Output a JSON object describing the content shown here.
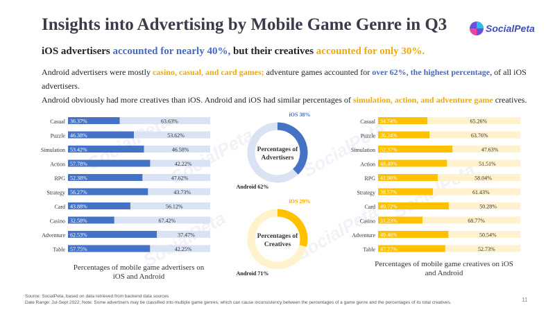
{
  "title": "Insights into Advertising by Mobile Game Genre in Q3",
  "logo": {
    "text": "SocialPeta"
  },
  "subtitle": {
    "part1": "iOS advertisers ",
    "part2": "accounted for nearly 40%,",
    "part3": " but their creatives ",
    "part4": "accounted for only 30%."
  },
  "para1": {
    "a": "Android advertisers were mostly ",
    "b": "casino, casual, and card games;",
    "c": " adventure games accounted for ",
    "d": "over 62%, the highest percentage,",
    "e": " of all iOS advertisers."
  },
  "para2": {
    "a": "Android obviously had more creatives than iOS. Android and iOS had similar percentages of ",
    "b": "simulation, action, and adventure game",
    "c": " creatives."
  },
  "watermark": "SocialPeta",
  "colors": {
    "ios_blue": "#4472c4",
    "android_blue_light": "#dae3f3",
    "ios_orange": "#ffc000",
    "android_orange_light": "#fff2cc"
  },
  "chart_data": [
    {
      "type": "bar",
      "orientation": "horizontal-stacked-100",
      "caption": "Percentages of mobile game advertisers on iOS and Android",
      "categories": [
        "Casual",
        "Puzzle",
        "Simulation",
        "Action",
        "RPG",
        "Strategy",
        "Card",
        "Casino",
        "Adventure",
        "Table"
      ],
      "series": [
        {
          "name": "iOS",
          "values": [
            36.37,
            46.38,
            53.42,
            57.78,
            52.38,
            56.27,
            43.88,
            32.58,
            62.53,
            57.75
          ],
          "labels": [
            "36.37%",
            "46.38%",
            "53.42%",
            "57.78%",
            "52.38%",
            "56.27%",
            "43.88%",
            "32.58%",
            "62.53%",
            "57.75%"
          ]
        },
        {
          "name": "Android",
          "values": [
            63.63,
            53.62,
            46.58,
            42.22,
            47.62,
            43.73,
            56.12,
            67.42,
            37.47,
            42.25
          ],
          "labels": [
            "63.63%",
            "53.62%",
            "46.58%",
            "42.22%",
            "47.62%",
            "43.73%",
            "56.12%",
            "67.42%",
            "37.47%",
            "42.25%"
          ]
        }
      ]
    },
    {
      "type": "pie",
      "center_label": [
        "Percentages of",
        "Advertisers"
      ],
      "slices": [
        {
          "name": "iOS",
          "value": 38,
          "label": "iOS 38%"
        },
        {
          "name": "Android",
          "value": 62,
          "label": "Android 62%"
        }
      ]
    },
    {
      "type": "pie",
      "center_label": [
        "Percentages of",
        "Creatives"
      ],
      "slices": [
        {
          "name": "iOS",
          "value": 29,
          "label": "iOS 29%"
        },
        {
          "name": "Android",
          "value": 71,
          "label": "Android 71%"
        }
      ]
    },
    {
      "type": "bar",
      "orientation": "horizontal-stacked-100",
      "caption": "Percentages of mobile game creatives on iOS and Android",
      "categories": [
        "Casual",
        "Puzzle",
        "Simulation",
        "Action",
        "RPG",
        "Strategy",
        "Card",
        "Casino",
        "Adventure",
        "Table"
      ],
      "series": [
        {
          "name": "iOS",
          "values": [
            34.74,
            36.24,
            52.37,
            48.49,
            41.96,
            38.57,
            49.72,
            31.23,
            49.46,
            47.27
          ],
          "labels": [
            "34.74%",
            "36.24%",
            "52.37%",
            "48.49%",
            "41.96%",
            "38.57%",
            "49.72%",
            "31.23%",
            "49.46%",
            "47.27%"
          ]
        },
        {
          "name": "Android",
          "values": [
            65.26,
            63.76,
            47.63,
            51.51,
            58.04,
            61.43,
            50.28,
            68.77,
            50.54,
            52.73
          ],
          "labels": [
            "65.26%",
            "63.76%",
            "47.63%",
            "51.51%",
            "58.04%",
            "61.43%",
            "50.28%",
            "68.77%",
            "50.54%",
            "52.73%"
          ]
        }
      ]
    }
  ],
  "footer": {
    "line1": "Source: SocialPeta, based on data retrieved from backend data sources",
    "line2": "Date Range: Jul-Sept 2022; Note: Some advertisers may be classified into multiple game genres, which can cause inconsistency between the percentages of a game genre and the percentages of its total creatives."
  },
  "page_number": "11"
}
